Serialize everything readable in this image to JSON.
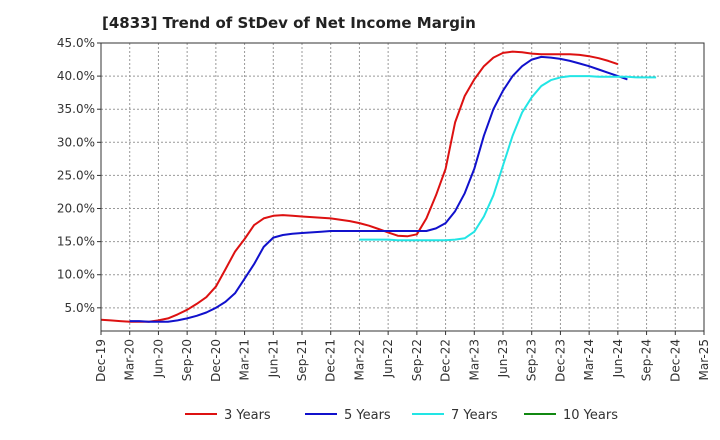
{
  "chart_data": {
    "type": "line",
    "title": "[4833]  Trend of StDev of Net Income Margin",
    "xlabel": "",
    "ylabel": "",
    "x_ticks": [
      "Dec-19",
      "Mar-20",
      "Jun-20",
      "Sep-20",
      "Dec-20",
      "Mar-21",
      "Jun-21",
      "Sep-21",
      "Dec-21",
      "Mar-22",
      "Jun-22",
      "Sep-22",
      "Dec-22",
      "Mar-23",
      "Jun-23",
      "Sep-23",
      "Dec-23",
      "Mar-24",
      "Jun-24",
      "Sep-24",
      "Dec-24",
      "Mar-25"
    ],
    "y_ticks": [
      "5.0%",
      "10.0%",
      "15.0%",
      "20.0%",
      "25.0%",
      "30.0%",
      "35.0%",
      "40.0%",
      "45.0%"
    ],
    "ylim": [
      1.5,
      45
    ],
    "grid": true,
    "legend_position": "bottom",
    "series": [
      {
        "name": "3 Years",
        "color": "#dd1111",
        "start": "Dec-19",
        "values": [
          3.2,
          3.1,
          3.0,
          2.9,
          2.9,
          2.9,
          3.1,
          3.4,
          4.0,
          4.7,
          5.6,
          6.6,
          8.2,
          10.8,
          13.5,
          15.4,
          17.5,
          18.5,
          18.9,
          19.0,
          18.9,
          18.8,
          18.7,
          18.6,
          18.5,
          18.3,
          18.1,
          17.8,
          17.4,
          16.9,
          16.4,
          15.9,
          15.8,
          16.1,
          18.5,
          22.0,
          26.0,
          33.0,
          37.0,
          39.5,
          41.5,
          42.8,
          43.5,
          43.7,
          43.6,
          43.4,
          43.3,
          43.3,
          43.3,
          43.3,
          43.2,
          43.0,
          42.7,
          42.3,
          41.8
        ]
      },
      {
        "name": "5 Years",
        "color": "#1111cc",
        "start": "Mar-20",
        "values": [
          3.0,
          3.0,
          2.9,
          2.9,
          2.9,
          3.1,
          3.4,
          3.8,
          4.3,
          5.0,
          5.9,
          7.2,
          9.4,
          11.6,
          14.2,
          15.6,
          16.0,
          16.2,
          16.3,
          16.4,
          16.5,
          16.6,
          16.6,
          16.6,
          16.6,
          16.6,
          16.6,
          16.6,
          16.6,
          16.6,
          16.6,
          16.6,
          17.0,
          17.8,
          19.6,
          22.3,
          26.0,
          31.0,
          35.0,
          37.8,
          40.0,
          41.5,
          42.5,
          42.9,
          42.8,
          42.6,
          42.3,
          41.9,
          41.5,
          41.0,
          40.5,
          40.0,
          39.5
        ]
      },
      {
        "name": "7 Years",
        "color": "#22e5e5",
        "start": "Mar-22",
        "values": [
          15.3,
          15.3,
          15.3,
          15.3,
          15.2,
          15.2,
          15.2,
          15.2,
          15.2,
          15.2,
          15.3,
          15.5,
          16.5,
          18.8,
          22.0,
          26.5,
          31.0,
          34.5,
          36.8,
          38.5,
          39.4,
          39.8,
          40.0,
          40.0,
          40.0,
          39.9,
          39.9,
          39.9,
          39.9,
          39.8,
          39.8,
          39.8
        ]
      },
      {
        "name": "10 Years",
        "color": "#118811",
        "start": "Dec-24",
        "values": []
      }
    ]
  }
}
